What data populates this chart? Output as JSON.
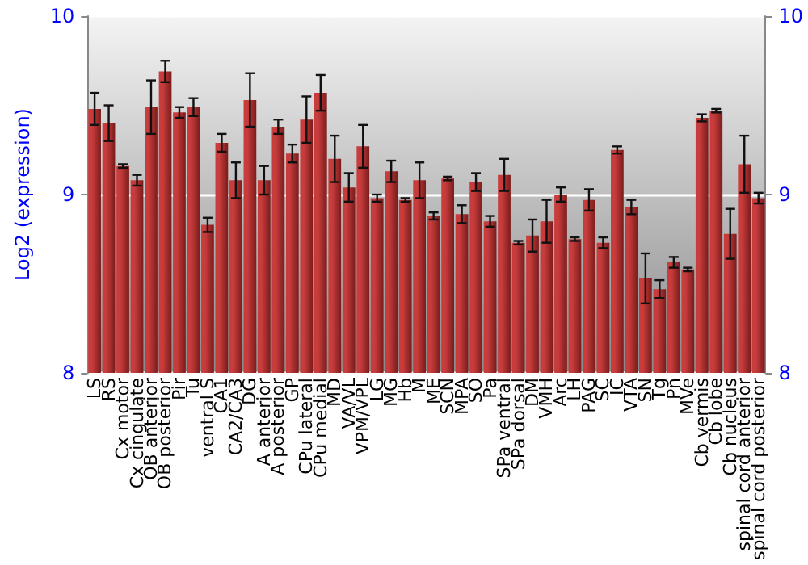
{
  "chart_data": {
    "type": "bar",
    "ylabel": "Log2 (expression)",
    "categories": [
      "LS",
      "RS",
      "Cx motor",
      "Cx cingulate",
      "OB anterior",
      "OB posterior",
      "Pir",
      "Tu",
      "ventral S",
      "CA1",
      "CA2/CA3",
      "DG",
      "A anterior",
      "A posterior",
      "GP",
      "CPu lateral",
      "CPu medial",
      "MD",
      "VA/VL",
      "VPM/VPL",
      "LG",
      "MG",
      "Hb",
      "M",
      "ME",
      "SCN",
      "MPA",
      "SO",
      "Pa",
      "SPa ventral",
      "SPa dorsal",
      "DM",
      "VMH",
      "Arc",
      "LH",
      "PAG",
      "SC",
      "IC",
      "VTA",
      "SN",
      "Tg",
      "Pn",
      "MVe",
      "Cb vermis",
      "Cb lobe",
      "Cb nucleus",
      "spinal cord anterior",
      "spinal cord posterior"
    ],
    "values": [
      9.48,
      9.4,
      9.16,
      9.08,
      9.49,
      9.69,
      9.46,
      9.49,
      8.83,
      9.29,
      9.08,
      9.53,
      9.08,
      9.38,
      9.23,
      9.42,
      9.57,
      9.2,
      9.04,
      9.27,
      8.98,
      9.13,
      8.97,
      9.08,
      8.88,
      9.09,
      8.89,
      9.07,
      8.85,
      9.11,
      8.73,
      8.77,
      8.85,
      9.0,
      8.75,
      8.97,
      8.73,
      9.25,
      8.93,
      8.53,
      8.47,
      8.62,
      8.58,
      9.43,
      9.47,
      8.78,
      9.17,
      8.98
    ],
    "errors": [
      0.09,
      0.1,
      0.01,
      0.03,
      0.15,
      0.06,
      0.03,
      0.05,
      0.04,
      0.05,
      0.1,
      0.15,
      0.08,
      0.04,
      0.05,
      0.13,
      0.1,
      0.13,
      0.08,
      0.12,
      0.02,
      0.06,
      0.01,
      0.1,
      0.02,
      0.01,
      0.05,
      0.05,
      0.03,
      0.09,
      0.01,
      0.09,
      0.12,
      0.04,
      0.01,
      0.06,
      0.03,
      0.02,
      0.04,
      0.14,
      0.05,
      0.03,
      0.01,
      0.02,
      0.01,
      0.14,
      0.16,
      0.03
    ],
    "color": "#c83c3c",
    "ylim": [
      8,
      10
    ],
    "yticks": [
      8,
      9,
      10
    ],
    "y2lim": [
      8,
      10
    ],
    "y2ticks": [
      8,
      9,
      10
    ],
    "grid": "y"
  }
}
